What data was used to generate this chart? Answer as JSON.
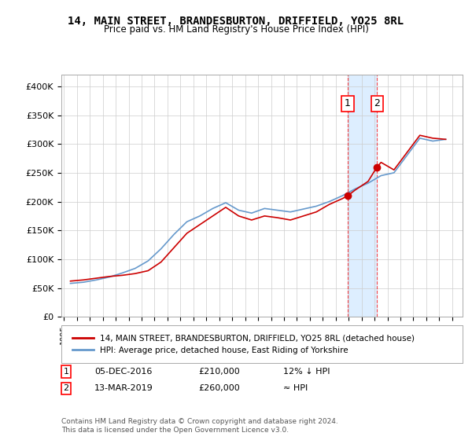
{
  "title": "14, MAIN STREET, BRANDESBURTON, DRIFFIELD, YO25 8RL",
  "subtitle": "Price paid vs. HM Land Registry's House Price Index (HPI)",
  "ylabel_ticks": [
    "£0",
    "£50K",
    "£100K",
    "£150K",
    "£200K",
    "£250K",
    "£300K",
    "£350K",
    "£400K"
  ],
  "ylim": [
    0,
    420000
  ],
  "xlim_start": 1995,
  "xlim_end": 2025.5,
  "transaction1": {
    "date": 2016.92,
    "price": 210000,
    "label": "1"
  },
  "transaction2": {
    "date": 2019.19,
    "price": 260000,
    "label": "2"
  },
  "legend_line1": "14, MAIN STREET, BRANDESBURTON, DRIFFIELD, YO25 8RL (detached house)",
  "legend_line2": "HPI: Average price, detached house, East Riding of Yorkshire",
  "table_row1": [
    "1",
    "05-DEC-2016",
    "£210,000",
    "12% ↓ HPI"
  ],
  "table_row2": [
    "2",
    "13-MAR-2019",
    "£260,000",
    "≈ HPI"
  ],
  "footer": "Contains HM Land Registry data © Crown copyright and database right 2024.\nThis data is licensed under the Open Government Licence v3.0.",
  "line_color_red": "#cc0000",
  "line_color_blue": "#6699cc",
  "marker_color_red": "#cc0000",
  "highlight_color": "#ddeeff",
  "background_color": "#ffffff"
}
